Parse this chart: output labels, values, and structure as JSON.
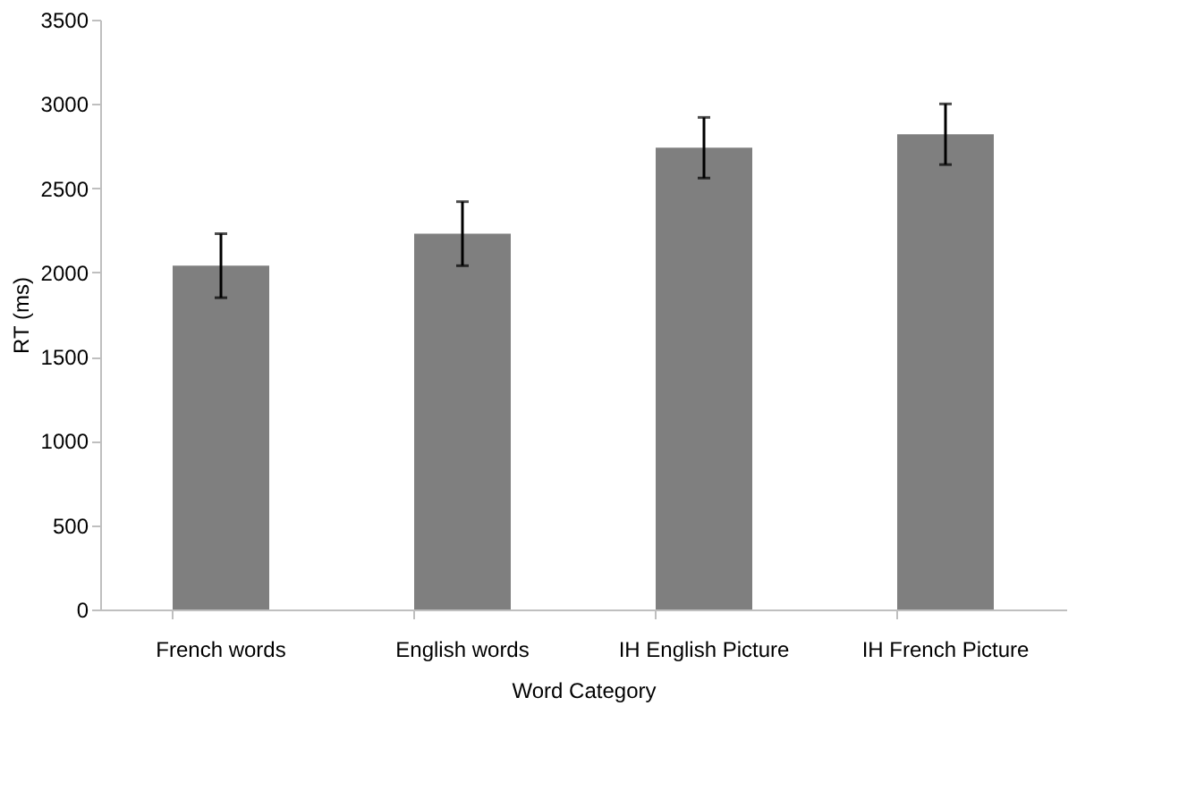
{
  "chart_data": {
    "type": "bar",
    "xlabel": "Word Category",
    "ylabel": "RT (ms)",
    "categories": [
      "French words",
      "English words",
      "IH English Picture",
      "IH French Picture"
    ],
    "values": [
      2040,
      2230,
      2740,
      2820
    ],
    "errors": [
      190,
      190,
      180,
      180
    ],
    "color": "#7f7f7f",
    "ylim": [
      0,
      3500
    ],
    "yticks": [
      0,
      500,
      1000,
      1500,
      2000,
      2500,
      3000,
      3500
    ],
    "grid": false
  }
}
